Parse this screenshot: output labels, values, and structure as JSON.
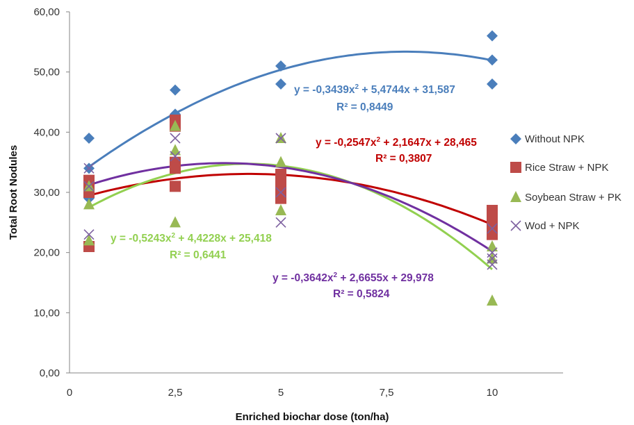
{
  "chart_data": {
    "type": "scatter",
    "xlabel": "Enriched biochar dose (ton/ha)",
    "ylabel": "Total Root Nodules",
    "xlim": [
      0,
      12
    ],
    "ylim": [
      0,
      60
    ],
    "y_ticks": [
      "0,00",
      "10,00",
      "20,00",
      "30,00",
      "40,00",
      "50,00",
      "60,00"
    ],
    "x_ticks": [
      "0",
      "2,5",
      "5",
      "7,5",
      "10"
    ],
    "legend_position": "right",
    "grid": false,
    "series": [
      {
        "name": "Without NPK",
        "color": "#4A7EBB",
        "marker": "diamond",
        "points": [
          [
            0.5,
            39
          ],
          [
            0.5,
            34
          ],
          [
            0.5,
            29
          ],
          [
            2.5,
            47
          ],
          [
            2.5,
            43
          ],
          [
            5,
            51
          ],
          [
            5,
            48
          ],
          [
            10,
            56
          ],
          [
            10,
            52
          ],
          [
            10,
            48
          ]
        ],
        "trend": {
          "a": -0.3439,
          "b": 5.4744,
          "c": 31.587
        },
        "equation": "y = -0,3439x",
        "equation_rest": " + 5,4744x + 31,587",
        "r2": "R² = 0,8449"
      },
      {
        "name": "Rice Straw + NPK",
        "color": "#BE4B48",
        "trend_color": "#C00000",
        "marker": "square",
        "points": [
          [
            0.5,
            32
          ],
          [
            0.5,
            31
          ],
          [
            0.5,
            30
          ],
          [
            0.5,
            21
          ],
          [
            2.5,
            42
          ],
          [
            2.5,
            41
          ],
          [
            2.5,
            35
          ],
          [
            2.5,
            34
          ],
          [
            2.5,
            31
          ],
          [
            5,
            33
          ],
          [
            5,
            32
          ],
          [
            5,
            31
          ],
          [
            5,
            30
          ],
          [
            5,
            29
          ],
          [
            10,
            27
          ],
          [
            10,
            26
          ],
          [
            10,
            25
          ],
          [
            10,
            24
          ],
          [
            10,
            23
          ]
        ],
        "trend": {
          "a": -0.2547,
          "b": 2.1647,
          "c": 28.465
        },
        "equation": "y = -0,2547x",
        "equation_rest": " + 2,1647x + 28,465",
        "r2": "R² = 0,3807"
      },
      {
        "name": "Soybean Straw + PK",
        "color": "#98B954",
        "trend_color": "#92D050",
        "marker": "triangle",
        "points": [
          [
            0.5,
            28
          ],
          [
            0.5,
            31
          ],
          [
            0.5,
            22
          ],
          [
            2.5,
            41
          ],
          [
            2.5,
            37
          ],
          [
            2.5,
            25
          ],
          [
            5,
            39
          ],
          [
            5,
            35
          ],
          [
            5,
            27
          ],
          [
            10,
            21
          ],
          [
            10,
            19
          ],
          [
            10,
            12
          ]
        ],
        "trend": {
          "a": -0.5243,
          "b": 4.4228,
          "c": 25.418
        },
        "equation": "y = -0,5243x",
        "equation_rest": " + 4,4228x + 25,418",
        "r2": "R² = 0,6441"
      },
      {
        "name": "Wod + NPK",
        "color": "#7D60A0",
        "trend_color": "#7030A0",
        "marker": "x",
        "points": [
          [
            0.5,
            34
          ],
          [
            0.5,
            31
          ],
          [
            0.5,
            23
          ],
          [
            2.5,
            39
          ],
          [
            2.5,
            36
          ],
          [
            5,
            39
          ],
          [
            5,
            30
          ],
          [
            5,
            25
          ],
          [
            10,
            24
          ],
          [
            10,
            20
          ],
          [
            10,
            19
          ],
          [
            10,
            18
          ]
        ],
        "trend": {
          "a": -0.3642,
          "b": 2.6655,
          "c": 29.978
        },
        "equation": "y = -0,3642x",
        "equation_rest": " + 2,6655x + 29,978",
        "r2": "R² = 0,5824"
      }
    ]
  }
}
